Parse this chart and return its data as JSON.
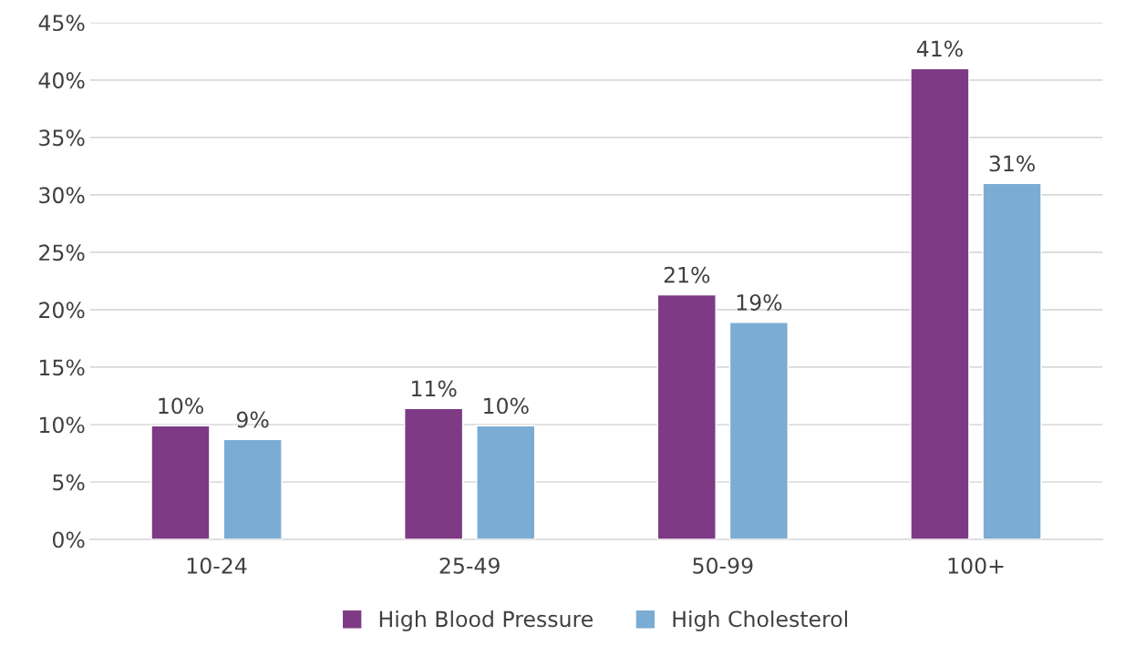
{
  "chart_data": {
    "type": "bar",
    "categories": [
      "10-24",
      "25-49",
      "50-99",
      "100+"
    ],
    "series": [
      {
        "name": "High Blood Pressure",
        "color": "#7e3a85",
        "values": [
          9.9,
          11.4,
          21.3,
          41.0
        ],
        "value_labels": [
          "10%",
          "11%",
          "21%",
          "41%"
        ]
      },
      {
        "name": "High Cholesterol",
        "color": "#7bacd3",
        "values": [
          8.7,
          9.9,
          18.9,
          31.0
        ],
        "value_labels": [
          "9%",
          "10%",
          "19%",
          "31%"
        ]
      }
    ],
    "ylim": [
      0,
      45
    ],
    "yticks": [
      {
        "value": 0,
        "label": "0%"
      },
      {
        "value": 5,
        "label": "5%"
      },
      {
        "value": 10,
        "label": "10%"
      },
      {
        "value": 15,
        "label": "15%"
      },
      {
        "value": 20,
        "label": "20%"
      },
      {
        "value": 25,
        "label": "25%"
      },
      {
        "value": 30,
        "label": "30%"
      },
      {
        "value": 35,
        "label": "35%"
      },
      {
        "value": 40,
        "label": "40%"
      },
      {
        "value": 45,
        "label": "45%"
      }
    ],
    "grid": "y",
    "legend": "bottom"
  }
}
